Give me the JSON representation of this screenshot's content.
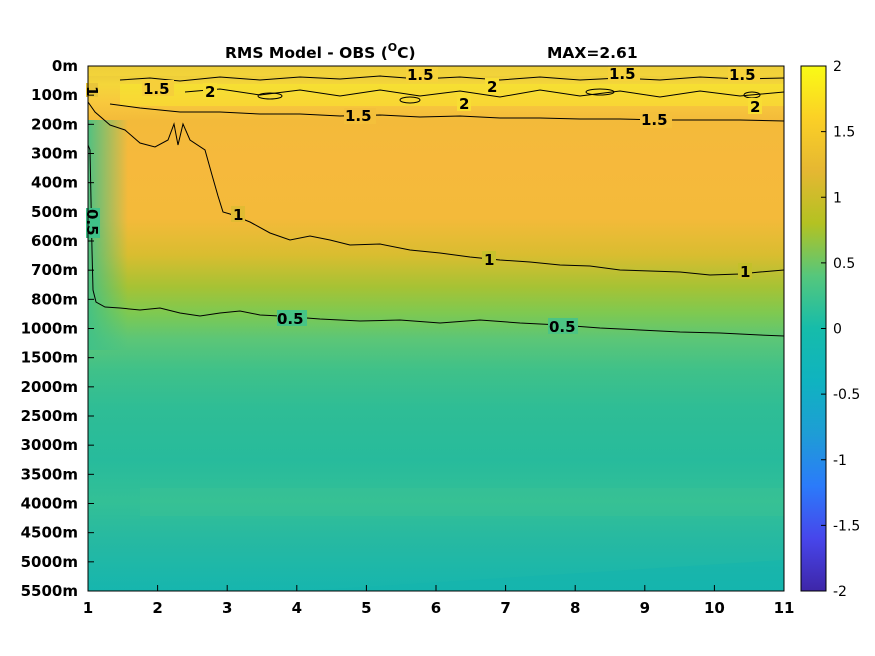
{
  "chart_data": {
    "type": "heatmap",
    "title_main": "RMS Model - OBS (",
    "title_sup": "O",
    "title_unit": "C)",
    "title_max": "MAX=2.61",
    "x_ticks": [
      "1",
      "2",
      "3",
      "4",
      "5",
      "6",
      "7",
      "8",
      "9",
      "10",
      "11"
    ],
    "xlim": [
      1,
      11
    ],
    "y_ticks": [
      "0m",
      "100m",
      "200m",
      "300m",
      "400m",
      "500m",
      "600m",
      "700m",
      "800m",
      "1000m",
      "1500m",
      "2000m",
      "2500m",
      "3000m",
      "3500m",
      "4000m",
      "4500m",
      "5000m",
      "5500m"
    ],
    "colorbar_ticks": [
      "2",
      "1.5",
      "1",
      "0.5",
      "0",
      "-0.5",
      "-1",
      "-1.5",
      "-2"
    ],
    "clim": [
      -2,
      2
    ],
    "colormap": "parula",
    "colormap_stops": [
      "#3e26a8",
      "#4746eb",
      "#2b7bfa",
      "#1e9dd5",
      "#0fb3c0",
      "#2cc29a",
      "#6ccb5e",
      "#b3c222",
      "#e5b732",
      "#fbd026",
      "#f9fb15"
    ],
    "depth_profile": {
      "levels": [
        "0m",
        "100m",
        "200m",
        "300m",
        "400m",
        "500m",
        "600m",
        "700m",
        "800m",
        "1000m",
        "1500m",
        "2000m",
        "2500m",
        "3000m",
        "3500m",
        "4000m",
        "4500m",
        "5000m",
        "5500m"
      ],
      "rms_typical": [
        1.6,
        2.0,
        1.55,
        1.3,
        1.35,
        1.4,
        1.2,
        0.95,
        0.7,
        0.45,
        0.25,
        0.18,
        0.15,
        0.15,
        0.15,
        0.2,
        0.2,
        0.15,
        0.1
      ]
    },
    "contours": [
      {
        "level": "0.5",
        "labels": [
          "0.5",
          "0.5",
          "0.5"
        ]
      },
      {
        "level": "1",
        "labels": [
          "1",
          "1",
          "1",
          "1"
        ]
      },
      {
        "level": "1.5",
        "labels": [
          "1.5",
          "1.5",
          "1.5",
          "1.5",
          "1.5"
        ]
      },
      {
        "level": "2",
        "labels": [
          "2",
          "2",
          "2",
          "2"
        ]
      }
    ]
  }
}
